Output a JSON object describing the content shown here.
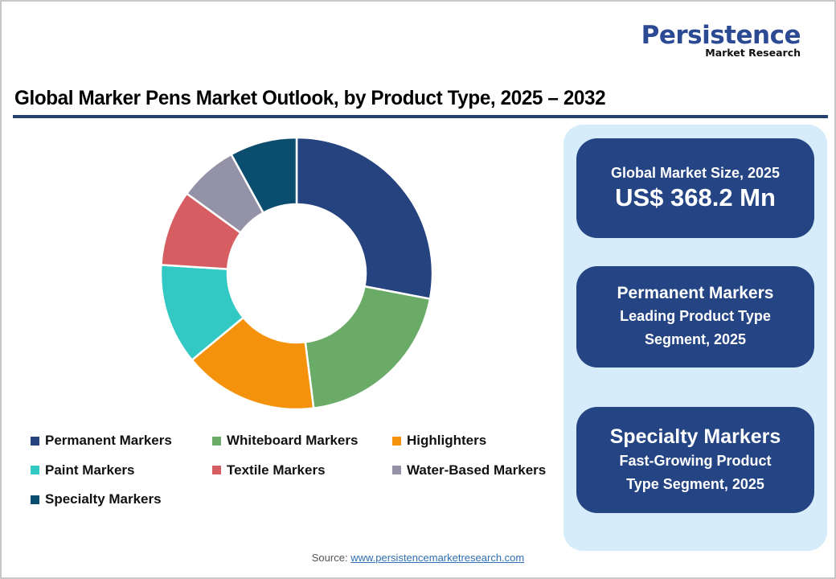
{
  "logo": {
    "main": "Persistence",
    "sub": "Market Research"
  },
  "title": "Global Marker Pens Market Outlook, by Product Type, 2025 – 2032",
  "chart_data": {
    "type": "pie",
    "subtype": "donut",
    "title": "Global Marker Pens Market Outlook, by Product Type, 2025 – 2032",
    "categories": [
      "Permanent Markers",
      "Whiteboard Markers",
      "Highlighters",
      "Paint Markers",
      "Textile Markers",
      "Water-Based Markers",
      "Specialty Markers"
    ],
    "values": [
      28,
      20,
      16,
      12,
      9,
      7,
      8
    ],
    "unit": "% share (estimated from slice angles)",
    "colors": [
      "#25437f",
      "#6aab68",
      "#f5920c",
      "#32c8c4",
      "#d65e62",
      "#9492a7",
      "#0b4d6e"
    ],
    "start_angle_deg": 0,
    "direction": "clockwise",
    "legend_position": "bottom"
  },
  "legend": {
    "items": [
      {
        "label": "Permanent Markers",
        "color": "#25437f"
      },
      {
        "label": "Whiteboard Markers",
        "color": "#6aab68"
      },
      {
        "label": "Highlighters",
        "color": "#f5920c"
      },
      {
        "label": "Paint Markers",
        "color": "#32c8c4"
      },
      {
        "label": "Textile Markers",
        "color": "#d65e62"
      },
      {
        "label": "Water-Based Markers",
        "color": "#9492a7"
      },
      {
        "label": "Specialty Markers",
        "color": "#0b4d6e"
      }
    ]
  },
  "panel": {
    "market_size": {
      "label": "Global Market Size, 2025",
      "value": "US$ 368.2 Mn"
    },
    "leading": {
      "segment": "Permanent Markers",
      "line1": "Leading Product Type",
      "line2": "Segment, 2025"
    },
    "fastest": {
      "segment": "Specialty Markers",
      "line1": "Fast-Growing Product",
      "line2": "Type Segment, 2025"
    }
  },
  "source": {
    "label": "Source:",
    "link": "www.persistencemarketresearch.com"
  },
  "colors": {
    "brand": "#2b4a93",
    "card": "#244483",
    "panel_bg": "#d7ecfb",
    "rule": "#26406f"
  }
}
